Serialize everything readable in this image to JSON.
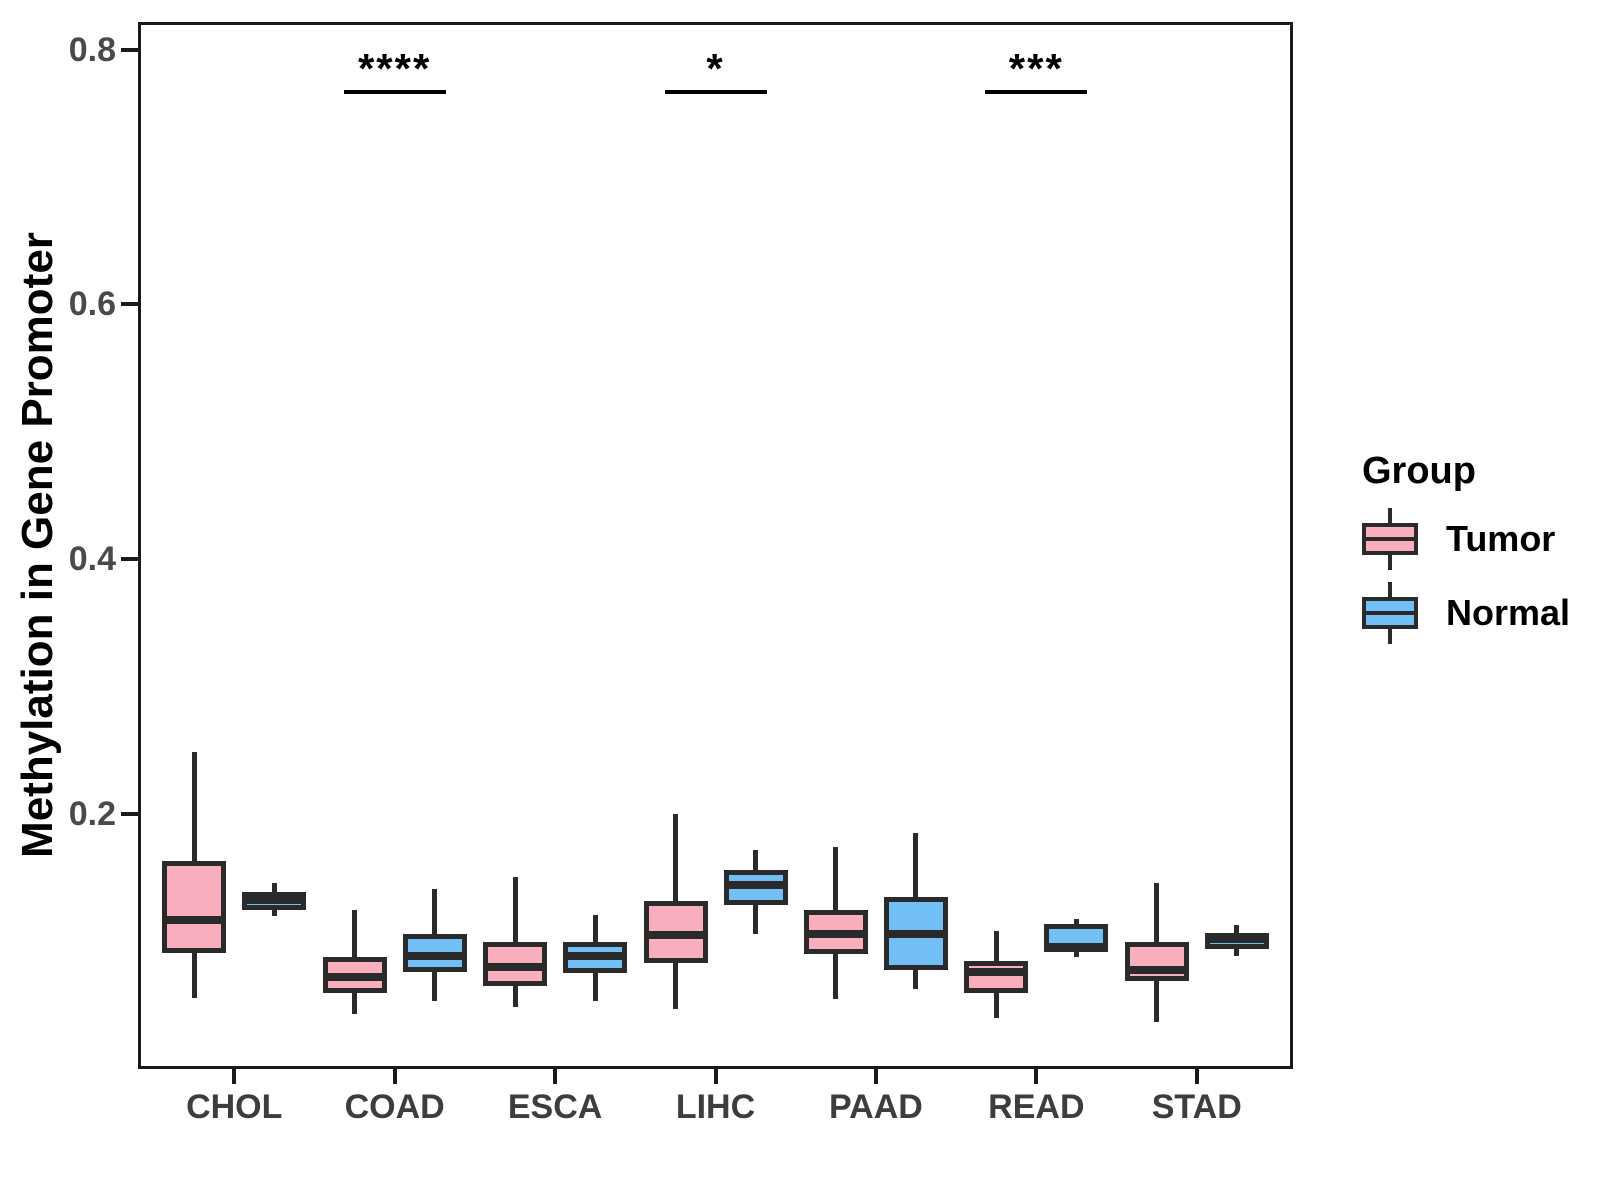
{
  "figure": {
    "y_tick_labels": [
      {
        "value": 0.2,
        "label": "0.2"
      },
      {
        "value": 0.4,
        "label": "0.4"
      },
      {
        "value": 0.6,
        "label": "0.6"
      },
      {
        "value": 0.8,
        "label": "0.8"
      }
    ]
  },
  "legend": {
    "title": "Group",
    "entries": [
      {
        "label": "Tumor",
        "color": "#F9AEBE"
      },
      {
        "label": "Normal",
        "color": "#72BFF5"
      }
    ]
  },
  "colors": {
    "tumor_fill": "#F9AEBE",
    "normal_fill": "#72BFF5",
    "box_border": "#2a2a2a",
    "panel_border": "#1a1a1a",
    "tick_text": "#4a4a4a",
    "annotation": "#000000"
  },
  "chart_data": {
    "type": "boxplot",
    "title": "",
    "xlabel": "",
    "ylabel": "Methylation in Gene Promoter",
    "categories": [
      "CHOL",
      "COAD",
      "ESCA",
      "LIHC",
      "PAAD",
      "READ",
      "STAD"
    ],
    "ylim": [
      0,
      0.822
    ],
    "yticks": [
      0.2,
      0.4,
      0.6,
      0.8
    ],
    "grid": false,
    "legend_position": "right",
    "legend_title": "Group",
    "box_stats_order": [
      "whisker_low",
      "q1",
      "median",
      "q3",
      "whisker_high"
    ],
    "series": [
      {
        "name": "Tumor",
        "fill": "#F9AEBE",
        "boxes": [
          [
            0.056,
            0.091,
            0.117,
            0.163,
            0.249
          ],
          [
            0.043,
            0.06,
            0.072,
            0.088,
            0.125
          ],
          [
            0.049,
            0.065,
            0.08,
            0.1,
            0.151
          ],
          [
            0.047,
            0.083,
            0.105,
            0.132,
            0.2
          ],
          [
            0.055,
            0.09,
            0.106,
            0.125,
            0.174
          ],
          [
            0.04,
            0.06,
            0.076,
            0.085,
            0.108
          ],
          [
            0.037,
            0.069,
            0.078,
            0.1,
            0.146
          ]
        ]
      },
      {
        "name": "Normal",
        "fill": "#72BFF5",
        "boxes": [
          [
            0.12,
            0.125,
            0.133,
            0.139,
            0.146
          ],
          [
            0.053,
            0.076,
            0.089,
            0.106,
            0.141
          ],
          [
            0.053,
            0.075,
            0.089,
            0.1,
            0.121
          ],
          [
            0.106,
            0.129,
            0.144,
            0.156,
            0.172
          ],
          [
            0.063,
            0.078,
            0.106,
            0.135,
            0.185
          ],
          [
            0.088,
            0.092,
            0.096,
            0.114,
            0.118
          ],
          [
            0.089,
            0.094,
            0.102,
            0.107,
            0.113
          ]
        ]
      }
    ],
    "annotations": [
      {
        "category": "COAD",
        "label": "****"
      },
      {
        "category": "LIHC",
        "label": "*"
      },
      {
        "category": "READ",
        "label": "***"
      }
    ]
  }
}
